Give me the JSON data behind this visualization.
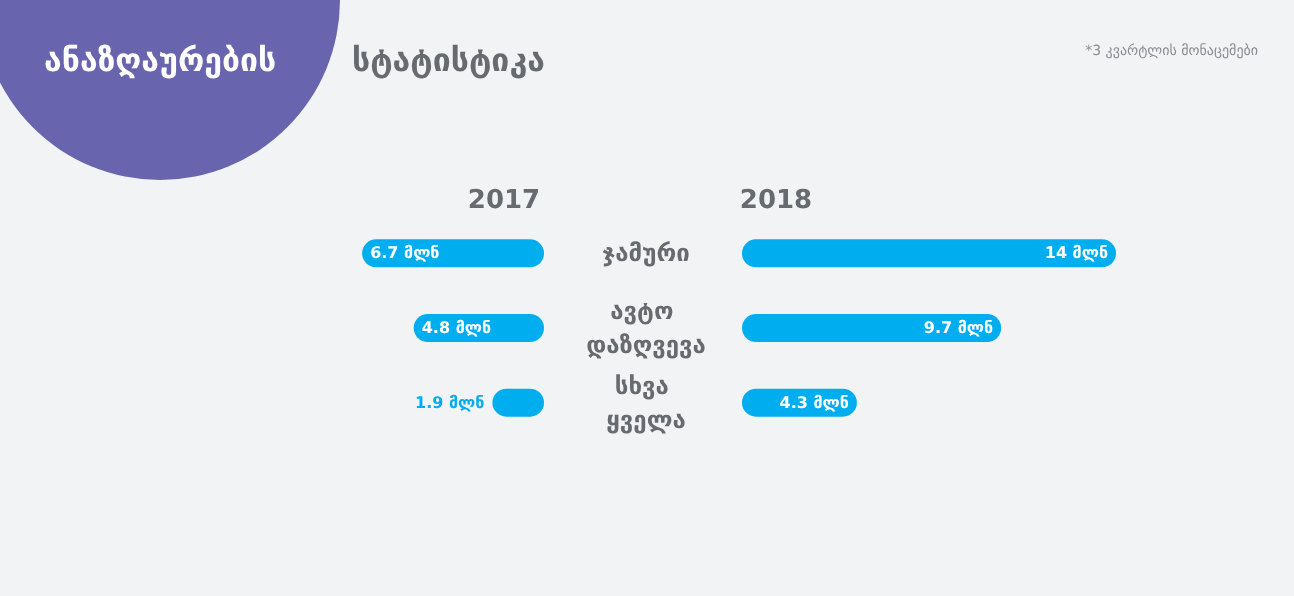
{
  "chart_data": [
    {
      "type": "bar",
      "orientation": "horizontal",
      "title": "ანაზღაურების სტატისტიკა",
      "categories": [
        "ჯამური",
        "ავტო დაზღვევა",
        "სხვა ყველა"
      ],
      "tick_labels": false,
      "series": [
        {
          "name": "2017",
          "color": "#00aeef",
          "values": [
            6.7,
            4.8,
            1.9
          ],
          "value_labels": [
            "6.7 მლნ",
            "4.8 მლნ",
            "1.9 მლნ"
          ]
        }
      ]
    },
    {
      "type": "bar",
      "orientation": "horizontal",
      "annotations": [
        "*3 კვარტლის მონაცემები"
      ],
      "categories": [
        "ჯამური",
        "ავტო დაზღვევა",
        "სხვა ყველა"
      ],
      "tick_labels": "y",
      "series": [
        {
          "name": "2018",
          "color": "#00aeef",
          "values": [
            14,
            9.7,
            4.3
          ],
          "value_labels": [
            "14 მლნ",
            "9.7 მლნ",
            "4.3 მლნ"
          ]
        }
      ]
    }
  ]
}
